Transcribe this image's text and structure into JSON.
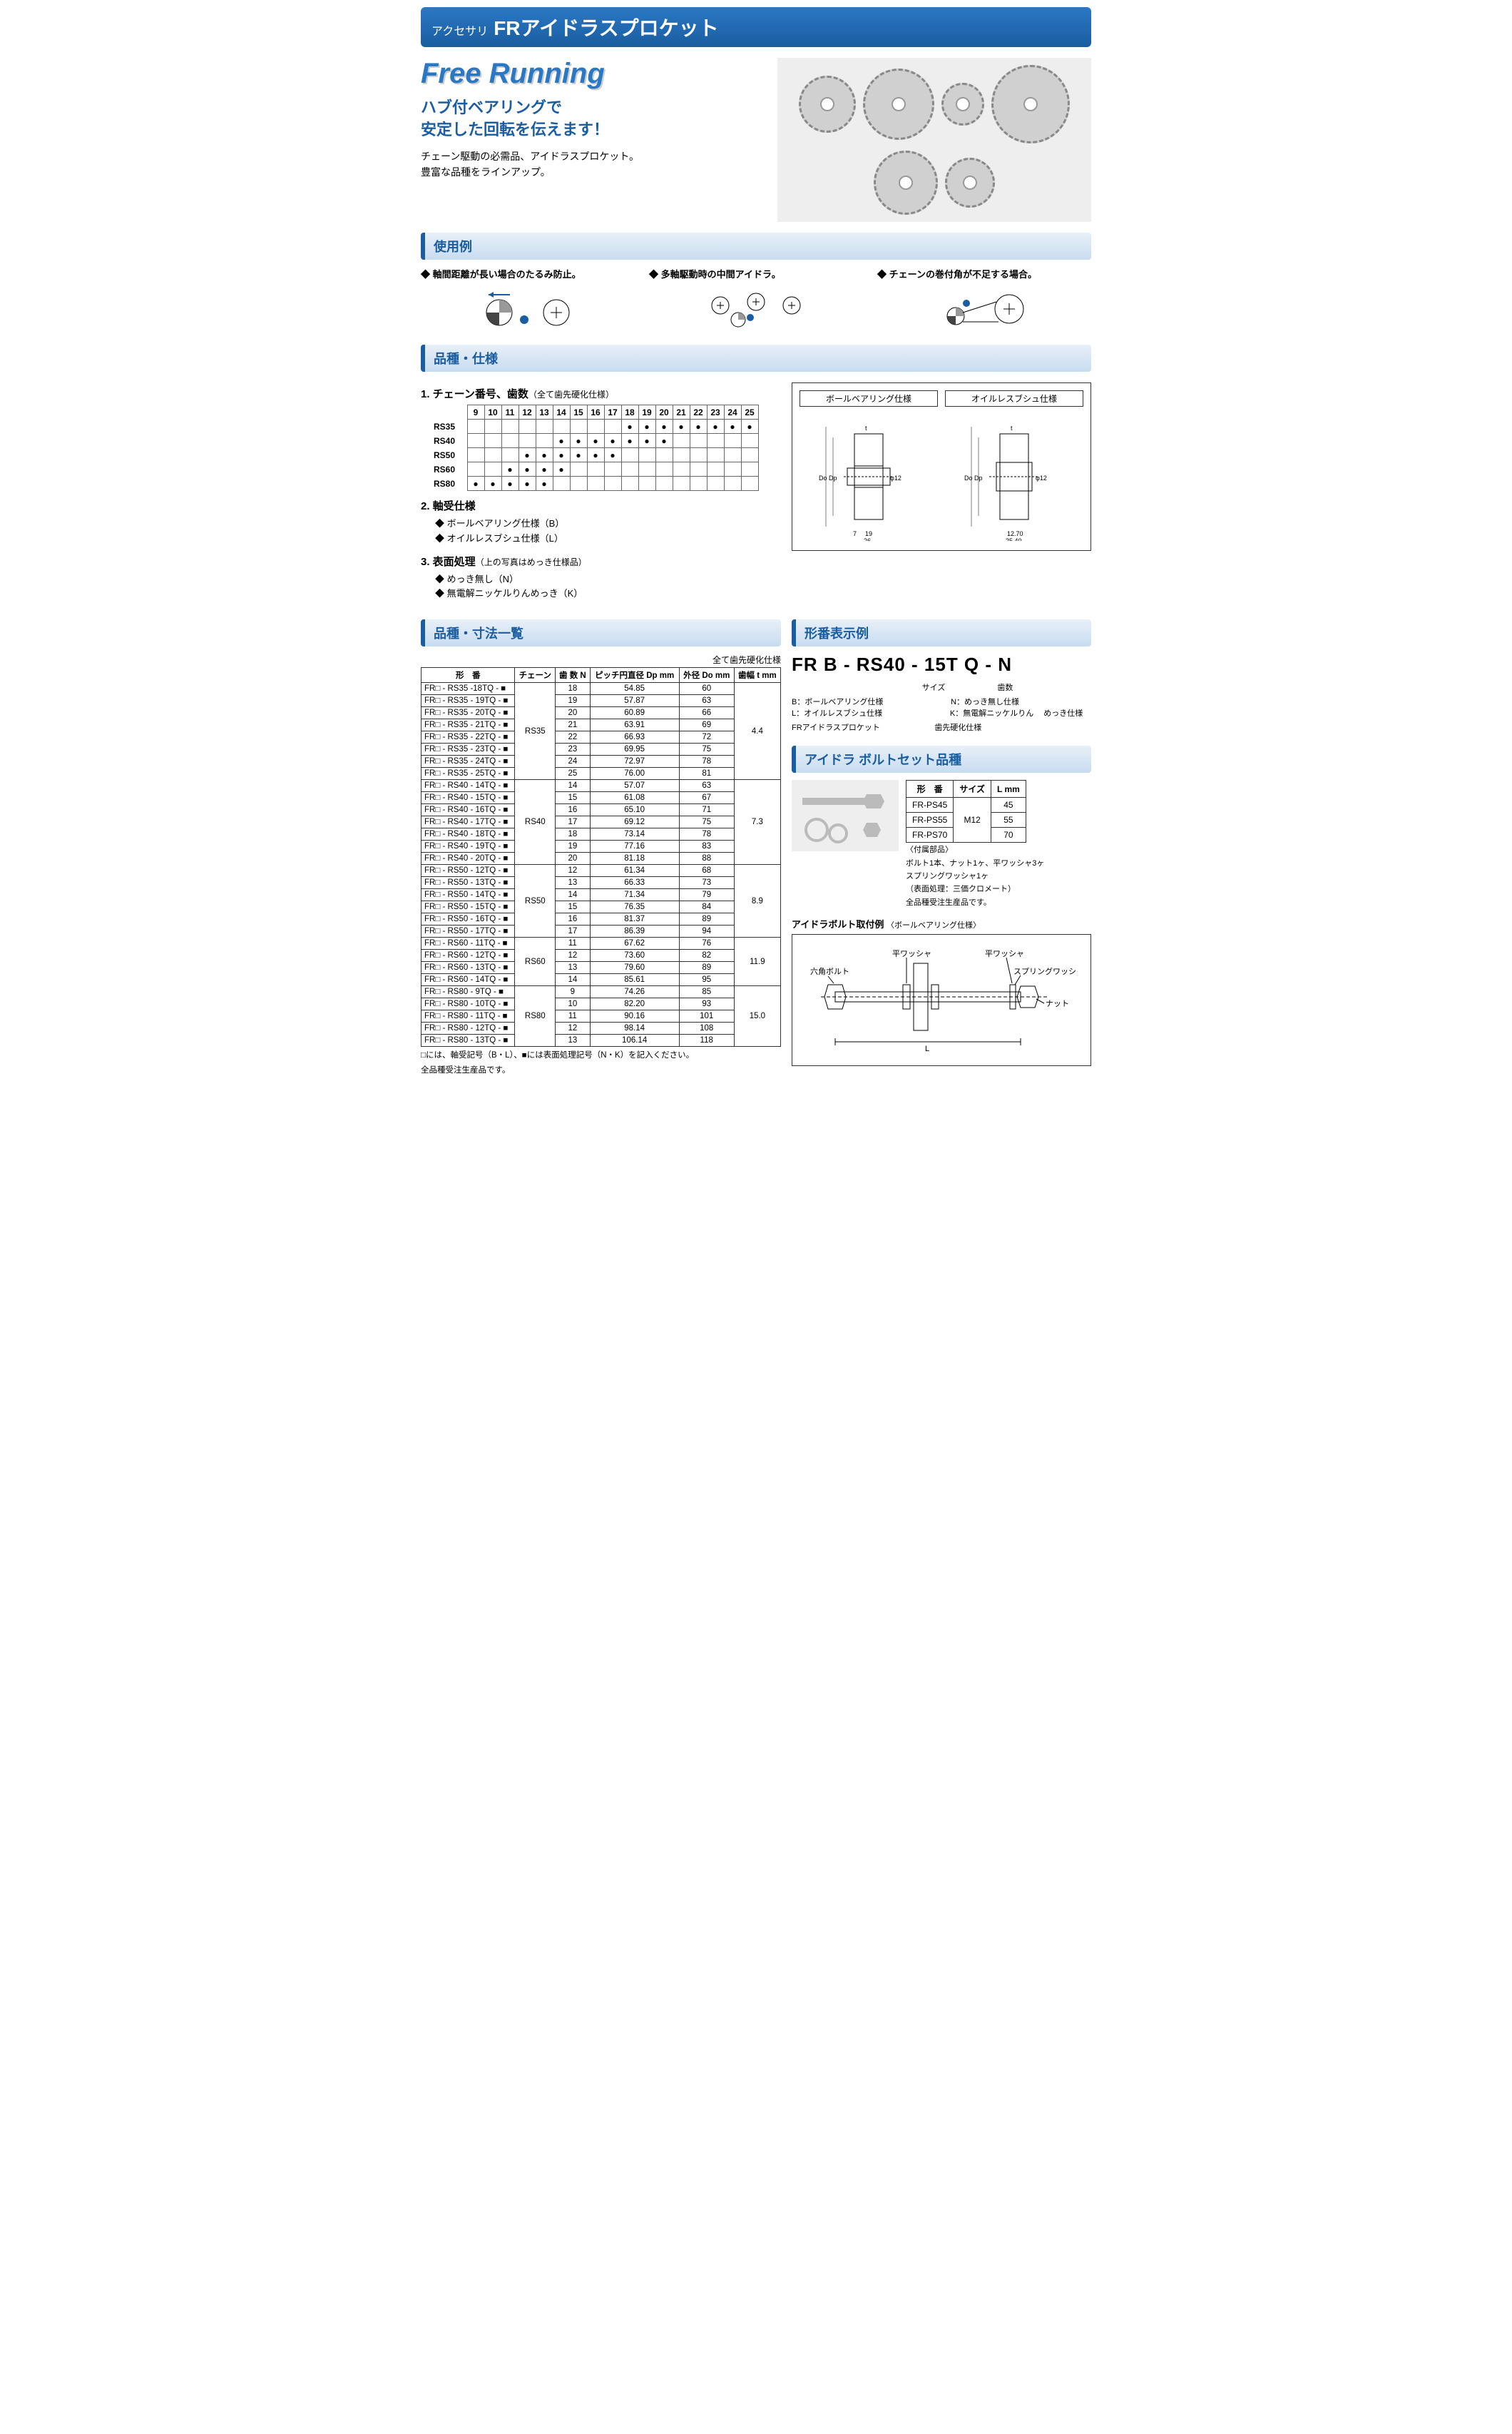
{
  "header": {
    "accessory": "アクセサリ",
    "title": "FRアイドラスプロケット"
  },
  "hero": {
    "freerunning": "Free Running",
    "subtitle": "ハブ付ベアリングで\n安定した回転を伝えます！",
    "desc1": "チェーン駆動の必需品、アイドラスプロケット。",
    "desc2": "豊富な品種をラインアップ。"
  },
  "sections": {
    "usage": "使用例",
    "spec": "品種・仕様",
    "dimlist": "品種・寸法一覧",
    "partno": "形番表示例",
    "bolt": "アイドラ ボルトセット品種"
  },
  "usage": [
    "◆ 軸間距離が長い場合のたるみ防止。",
    "◆ 多軸駆動時の中間アイドラ。",
    "◆ チェーンの巻付角が不足する場合。"
  ],
  "spec": {
    "n1": "1. チェーン番号、歯数",
    "n1sub": "（全て歯先硬化仕様）",
    "n2": "2. 軸受仕様",
    "n2a": "◆ ボールベアリング仕様（B）",
    "n2b": "◆ オイルレスブシュ仕様（L）",
    "n3": "3. 表面処理",
    "n3sub": "（上の写真はめっき仕様品）",
    "n3a": "◆ めっき無し（N）",
    "n3b": "◆ 無電解ニッケルりんめっき（K）",
    "diag_label_ball": "ボールベアリング仕様",
    "diag_label_oilless": "オイルレスブシュ仕様"
  },
  "chain_teeth": {
    "cols": [
      "9",
      "10",
      "11",
      "12",
      "13",
      "14",
      "15",
      "16",
      "17",
      "18",
      "19",
      "20",
      "21",
      "22",
      "23",
      "24",
      "25"
    ],
    "rows": [
      {
        "label": "RS35",
        "dots": [
          0,
          0,
          0,
          0,
          0,
          0,
          0,
          0,
          0,
          1,
          1,
          1,
          1,
          1,
          1,
          1,
          1
        ]
      },
      {
        "label": "RS40",
        "dots": [
          0,
          0,
          0,
          0,
          0,
          1,
          1,
          1,
          1,
          1,
          1,
          1,
          0,
          0,
          0,
          0,
          0
        ]
      },
      {
        "label": "RS50",
        "dots": [
          0,
          0,
          0,
          1,
          1,
          1,
          1,
          1,
          1,
          0,
          0,
          0,
          0,
          0,
          0,
          0,
          0
        ]
      },
      {
        "label": "RS60",
        "dots": [
          0,
          0,
          1,
          1,
          1,
          1,
          0,
          0,
          0,
          0,
          0,
          0,
          0,
          0,
          0,
          0,
          0
        ]
      },
      {
        "label": "RS80",
        "dots": [
          1,
          1,
          1,
          1,
          1,
          0,
          0,
          0,
          0,
          0,
          0,
          0,
          0,
          0,
          0,
          0,
          0
        ]
      }
    ]
  },
  "dim": {
    "caption": "全て歯先硬化仕様",
    "headers": [
      "形　番",
      "チェーン",
      "歯 数 N",
      "ピッチ円直径 Dp mm",
      "外径 Do mm",
      "歯幅 t mm"
    ],
    "groups": [
      {
        "chain": "RS35",
        "t": "4.4",
        "rows": [
          [
            "FR□ - RS35  -18TQ - ■",
            "18",
            "54.85",
            "60"
          ],
          [
            "FR□ - RS35 - 19TQ - ■",
            "19",
            "57.87",
            "63"
          ],
          [
            "FR□ - RS35 - 20TQ - ■",
            "20",
            "60.89",
            "66"
          ],
          [
            "FR□ - RS35 - 21TQ - ■",
            "21",
            "63.91",
            "69"
          ],
          [
            "FR□ - RS35 - 22TQ - ■",
            "22",
            "66.93",
            "72"
          ],
          [
            "FR□ - RS35 - 23TQ - ■",
            "23",
            "69.95",
            "75"
          ],
          [
            "FR□ - RS35 - 24TQ - ■",
            "24",
            "72.97",
            "78"
          ],
          [
            "FR□ - RS35 - 25TQ - ■",
            "25",
            "76.00",
            "81"
          ]
        ]
      },
      {
        "chain": "RS40",
        "t": "7.3",
        "rows": [
          [
            "FR□ - RS40 - 14TQ - ■",
            "14",
            "57.07",
            "63"
          ],
          [
            "FR□ - RS40 - 15TQ - ■",
            "15",
            "61.08",
            "67"
          ],
          [
            "FR□ - RS40 - 16TQ - ■",
            "16",
            "65.10",
            "71"
          ],
          [
            "FR□ - RS40 - 17TQ - ■",
            "17",
            "69.12",
            "75"
          ],
          [
            "FR□ - RS40 - 18TQ - ■",
            "18",
            "73.14",
            "78"
          ],
          [
            "FR□ - RS40 - 19TQ - ■",
            "19",
            "77.16",
            "83"
          ],
          [
            "FR□ - RS40 - 20TQ - ■",
            "20",
            "81.18",
            "88"
          ]
        ]
      },
      {
        "chain": "RS50",
        "t": "8.9",
        "rows": [
          [
            "FR□ - RS50 - 12TQ - ■",
            "12",
            "61.34",
            "68"
          ],
          [
            "FR□ - RS50 - 13TQ - ■",
            "13",
            "66.33",
            "73"
          ],
          [
            "FR□ - RS50 - 14TQ - ■",
            "14",
            "71.34",
            "79"
          ],
          [
            "FR□ - RS50 - 15TQ - ■",
            "15",
            "76.35",
            "84"
          ],
          [
            "FR□ - RS50 - 16TQ - ■",
            "16",
            "81.37",
            "89"
          ],
          [
            "FR□ - RS50 - 17TQ - ■",
            "17",
            "86.39",
            "94"
          ]
        ]
      },
      {
        "chain": "RS60",
        "t": "11.9",
        "rows": [
          [
            "FR□ - RS60 - 11TQ - ■",
            "11",
            "67.62",
            "76"
          ],
          [
            "FR□ - RS60 - 12TQ - ■",
            "12",
            "73.60",
            "82"
          ],
          [
            "FR□ - RS60 - 13TQ - ■",
            "13",
            "79.60",
            "89"
          ],
          [
            "FR□ - RS60 - 14TQ - ■",
            "14",
            "85.61",
            "95"
          ]
        ]
      },
      {
        "chain": "RS80",
        "t": "15.0",
        "rows": [
          [
            "FR□ - RS80 -   9TQ - ■",
            "9",
            "74.26",
            "85"
          ],
          [
            "FR□ - RS80 - 10TQ - ■",
            "10",
            "82.20",
            "93"
          ],
          [
            "FR□ - RS80 - 11TQ - ■",
            "11",
            "90.16",
            "101"
          ],
          [
            "FR□ - RS80 - 12TQ - ■",
            "12",
            "98.14",
            "108"
          ],
          [
            "FR□ - RS80 - 13TQ - ■",
            "13",
            "106.14",
            "118"
          ]
        ]
      }
    ],
    "foot1": "□には、軸受記号（B・L）、■には表面処理記号（N・K）を記入ください。",
    "foot2": "全品種受注生産品です。"
  },
  "partno": {
    "example": "FR B - RS40 - 15T Q - N",
    "labels": {
      "size": "サイズ",
      "teeth": "歯数",
      "b": "B：ボールベアリング仕様",
      "l": "L：オイルレスブシュ仕様",
      "fr": "FRアイドラスプロケット",
      "n": "N：めっき無し仕様",
      "k": "K：無電解ニッケルりん　 めっき仕様",
      "q": "歯先硬化仕様"
    }
  },
  "bolt": {
    "headers": [
      "形　番",
      "サイズ",
      "L mm"
    ],
    "size": "M12",
    "rows": [
      [
        "FR-PS45",
        "45"
      ],
      [
        "FR-PS55",
        "55"
      ],
      [
        "FR-PS70",
        "70"
      ]
    ],
    "note_h": "〈付属部品〉",
    "note1": "ボルト1本、ナット1ヶ、平ワッシャ3ヶ",
    "note2": "スプリングワッシャ1ヶ",
    "note3": "（表面処理：三価クロメート）",
    "note4": "全品種受注生産品です。",
    "install_h": "アイドラボルト取付例",
    "install_sub": "〈ボールベアリング仕様〉",
    "lbl_washer": "平ワッシャ",
    "lbl_hex": "六角ボルト",
    "lbl_spring": "スプリングワッシャ",
    "lbl_nut": "ナット",
    "lbl_L": "L"
  },
  "colors": {
    "primary": "#1a5da0",
    "accent": "#2a78c4"
  }
}
